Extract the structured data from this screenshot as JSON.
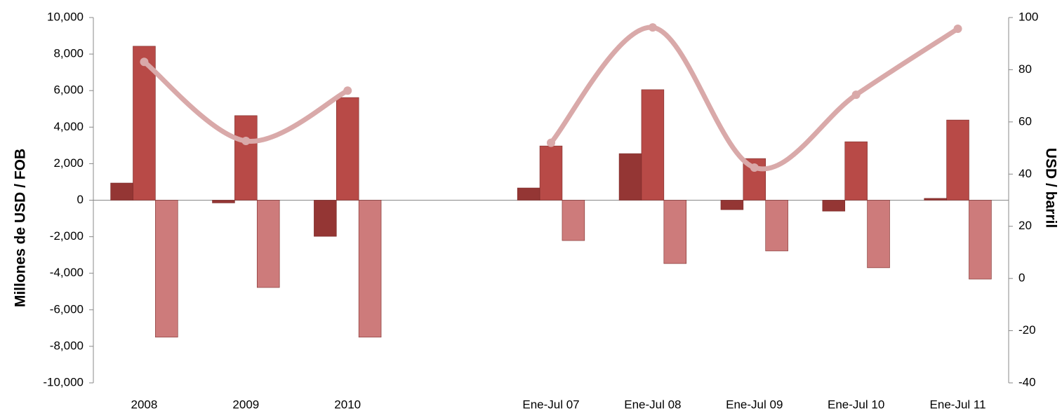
{
  "chart_data": {
    "type": "bar",
    "y_label": "Millones de USD / FOB",
    "y2_label": "USD / barril",
    "categories": [
      "2008",
      "2009",
      "2010",
      null,
      "Ene-Jul 07",
      "Ene-Jul 08",
      "Ene-Jul 09",
      "Ene-Jul 10",
      "Ene-Jul 11"
    ],
    "series": [
      {
        "color": "#943634",
        "values": [
          940,
          -150,
          -1980,
          null,
          670,
          2550,
          -520,
          -600,
          100
        ]
      },
      {
        "color": "#b84a47",
        "values": [
          8430,
          4630,
          5620,
          null,
          2970,
          6050,
          2280,
          3200,
          4390
        ]
      },
      {
        "color": "#cd7b7b",
        "values": [
          -7500,
          -4780,
          -7500,
          null,
          -2210,
          -3470,
          -2780,
          -3700,
          -4320
        ]
      },
      {
        "type": "line",
        "axis": "y2",
        "color": "#d9a9a9",
        "values": [
          83,
          52.7,
          72,
          null,
          52,
          96.2,
          42.5,
          70.4,
          95.7
        ]
      }
    ],
    "ylim": [
      -10000,
      10000
    ],
    "yticks": [
      {
        "value": -10000,
        "label": "-10,000"
      },
      {
        "value": -8000,
        "label": "-8,000"
      },
      {
        "value": -6000,
        "label": "-6,000"
      },
      {
        "value": -4000,
        "label": "-4,000"
      },
      {
        "value": -2000,
        "label": "-2,000"
      },
      0,
      {
        "value": 2000,
        "label": "2,000"
      },
      {
        "value": 4000,
        "label": "4,000"
      },
      {
        "value": 6000,
        "label": "6,000"
      },
      {
        "value": 8000,
        "label": "8,000"
      },
      {
        "value": 10000,
        "label": "10,000"
      }
    ],
    "y2lim": [
      -40,
      100
    ],
    "y2ticks": [
      -40,
      -20,
      0,
      20,
      40,
      60,
      80,
      100
    ]
  }
}
